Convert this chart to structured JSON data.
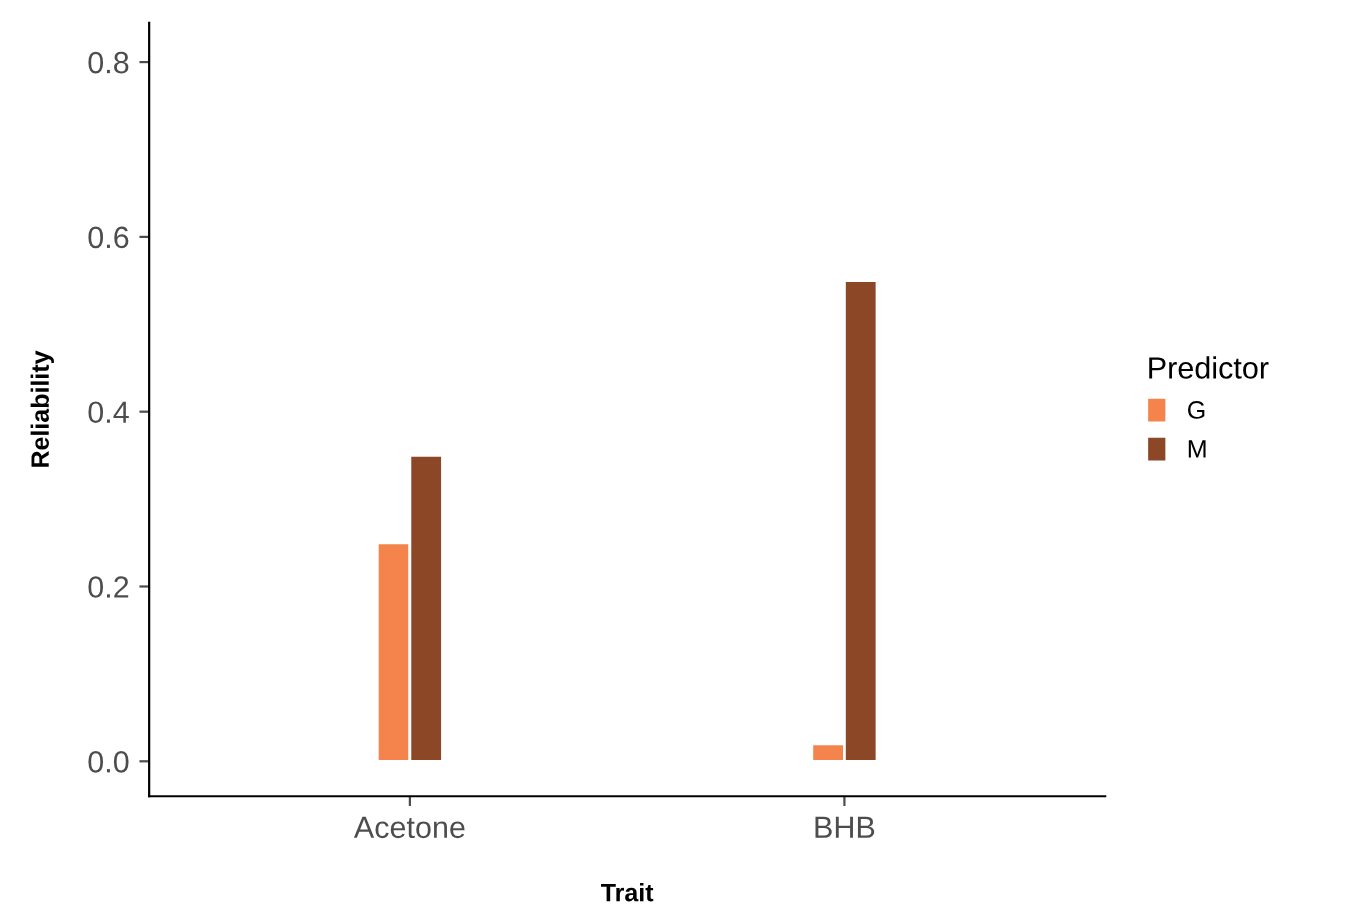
{
  "chart_data": {
    "type": "bar",
    "xlabel": "Trait",
    "ylabel": "Reliability",
    "legend_title": "Predictor",
    "categories": [
      "Acetone",
      "BHB"
    ],
    "series": [
      {
        "name": "G",
        "color": "#f4844c",
        "values": [
          0.25,
          0.02
        ]
      },
      {
        "name": "M",
        "color": "#8b4726",
        "values": [
          0.35,
          0.55
        ]
      }
    ],
    "ylim": [
      -0.04,
      0.845
    ],
    "yticks": [
      {
        "value": 0,
        "label": "0.0"
      },
      0.2,
      0.4,
      0.6,
      0.8
    ],
    "grid": false,
    "legend": "right"
  }
}
